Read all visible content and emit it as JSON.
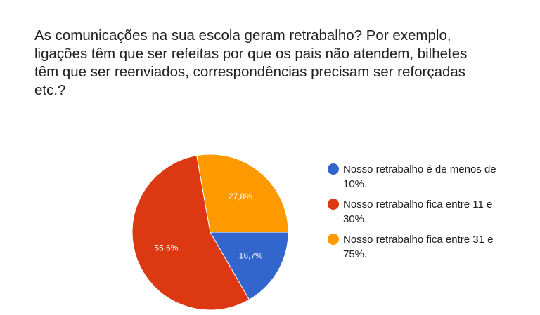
{
  "question": {
    "lines": [
      "As comunicações na sua escola geram retrabalho? Por exemplo,",
      "ligações têm que ser refeitas por que os pais não atendem, bilhetes",
      "têm que ser reenviados, correspondências precisam ser reforçadas",
      "etc.?"
    ]
  },
  "legend": {
    "items": [
      {
        "lines": [
          "Nosso retrabalho é de menos de",
          "10%."
        ],
        "color": "#3366cc"
      },
      {
        "lines": [
          "Nosso retrabalho fica entre 11 e",
          "30%."
        ],
        "color": "#dc3912"
      },
      {
        "lines": [
          "Nosso retrabalho fica entre 31 e",
          "75%."
        ],
        "color": "#ff9900"
      }
    ]
  },
  "chart_data": {
    "type": "pie",
    "title": "As comunicações na sua escola geram retrabalho? Por exemplo, ligações têm que ser refeitas por que os pais não atendem, bilhetes têm que ser reenviados, correspondências precisam ser reforçadas etc.?",
    "categories": [
      "Nosso retrabalho é de menos de 10%.",
      "Nosso retrabalho fica entre 11 e 30%.",
      "Nosso retrabalho fica entre 31 e 75%."
    ],
    "values": [
      16.7,
      55.6,
      27.8
    ],
    "labels": [
      "16,7%",
      "55,6%",
      "27,8%"
    ],
    "colors": [
      "#3366cc",
      "#dc3912",
      "#ff9900"
    ],
    "legend_position": "right"
  }
}
